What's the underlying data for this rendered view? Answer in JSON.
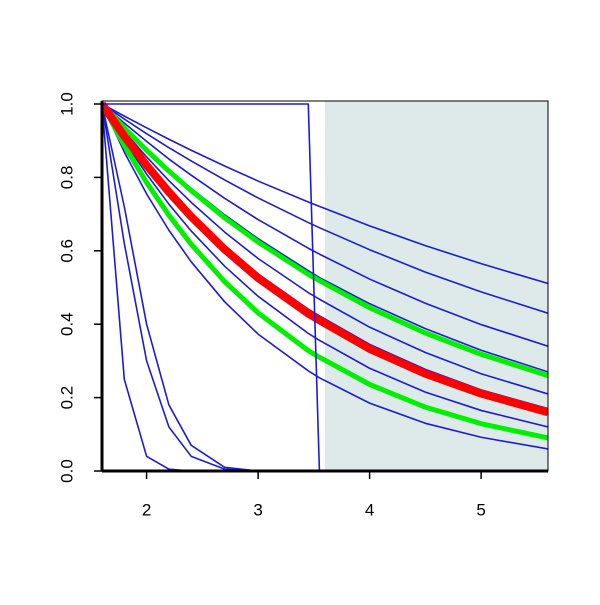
{
  "chart_data": {
    "type": "line",
    "x": [
      1.6,
      1.8,
      2.0,
      2.2,
      2.4,
      2.7,
      3.0,
      3.45,
      3.55,
      4.0,
      4.5,
      5.0,
      5.6
    ],
    "xlim": [
      1.6,
      5.6
    ],
    "ylim": [
      0,
      1
    ],
    "xticks": [
      2,
      3,
      4,
      5
    ],
    "yticks": [
      {
        "value": 0,
        "label": "0.0"
      },
      {
        "value": 0.2,
        "label": "0.2"
      },
      {
        "value": 0.4,
        "label": "0.4"
      },
      {
        "value": 0.6,
        "label": "0.6"
      },
      {
        "value": 0.8,
        "label": "0.8"
      },
      {
        "value": 1,
        "label": "1.0"
      }
    ],
    "grid": false,
    "shaded_region": {
      "x": [
        3.6,
        5.6
      ],
      "color": "#deeaea"
    },
    "series": [
      {
        "color": "#1c1cd6",
        "width": 1.6,
        "values": [
          1,
          0.967,
          0.935,
          0.904,
          0.874,
          0.831,
          0.79,
          0.733,
          0.721,
          0.668,
          0.614,
          0.565,
          0.511
        ]
      },
      {
        "color": "#1c1cd6",
        "width": 1.6,
        "values": [
          1,
          0.959,
          0.919,
          0.881,
          0.845,
          0.793,
          0.744,
          0.677,
          0.663,
          0.603,
          0.542,
          0.488,
          0.43
        ]
      },
      {
        "color": "#1c1cd6",
        "width": 1.6,
        "values": [
          1,
          0.948,
          0.898,
          0.85,
          0.806,
          0.743,
          0.685,
          0.607,
          0.591,
          0.523,
          0.457,
          0.399,
          0.34
        ]
      },
      {
        "color": "#1c1cd6",
        "width": 1.6,
        "values": [
          1,
          0.937,
          0.877,
          0.822,
          0.77,
          0.698,
          0.633,
          0.546,
          0.527,
          0.456,
          0.388,
          0.329,
          0.27
        ]
      },
      {
        "color": "#1c1cd6",
        "width": 1.6,
        "values": [
          1,
          0.925,
          0.856,
          0.791,
          0.732,
          0.651,
          0.579,
          0.486,
          0.468,
          0.392,
          0.323,
          0.265,
          0.21
        ]
      },
      {
        "color": "#1c1cd6",
        "width": 1.6,
        "values": [
          1,
          0.915,
          0.838,
          0.767,
          0.702,
          0.614,
          0.537,
          0.441,
          0.423,
          0.345,
          0.277,
          0.221,
          0.17
        ]
      },
      {
        "color": "#1c1cd6",
        "width": 1.6,
        "values": [
          1,
          0.899,
          0.809,
          0.727,
          0.654,
          0.558,
          0.476,
          0.375,
          0.356,
          0.28,
          0.215,
          0.165,
          0.12
        ]
      },
      {
        "color": "#1c1cd6",
        "width": 1.6,
        "values": [
          1,
          0.869,
          0.755,
          0.656,
          0.57,
          0.461,
          0.373,
          0.273,
          0.254,
          0.185,
          0.13,
          0.092,
          0.06
        ]
      },
      {
        "color": "#1c1cd6",
        "width": 1.6,
        "values": [
          1,
          0.25,
          0.04,
          0.005,
          0,
          0,
          0,
          0,
          0,
          0,
          0,
          0,
          0
        ]
      },
      {
        "color": "#1c1cd6",
        "width": 1.6,
        "values": [
          1,
          0.62,
          0.3,
          0.12,
          0.04,
          0.005,
          0,
          0,
          0,
          0,
          0,
          0,
          0
        ]
      },
      {
        "color": "#1c1cd6",
        "width": 1.6,
        "values": [
          1,
          0.72,
          0.4,
          0.18,
          0.07,
          0.01,
          0,
          0,
          0,
          0,
          0,
          0,
          0
        ]
      },
      {
        "color": "#00f000",
        "width": 5,
        "values": [
          1,
          0.935,
          0.874,
          0.817,
          0.764,
          0.69,
          0.624,
          0.536,
          0.519,
          0.445,
          0.376,
          0.318,
          0.26
        ]
      },
      {
        "color": "#00f000",
        "width": 5,
        "values": [
          1,
          0.887,
          0.786,
          0.697,
          0.618,
          0.516,
          0.431,
          0.328,
          0.31,
          0.236,
          0.174,
          0.129,
          0.09
        ]
      },
      {
        "color": "#ff0000",
        "width": 8,
        "values": [
          1,
          0.912,
          0.833,
          0.76,
          0.693,
          0.604,
          0.526,
          0.429,
          0.411,
          0.333,
          0.265,
          0.211,
          0.16
        ]
      },
      {
        "color": "#1c1cd6",
        "width": 1.6,
        "values": [
          1,
          1,
          1,
          1,
          1,
          1,
          1,
          1,
          0,
          0,
          0,
          0,
          0
        ]
      }
    ]
  }
}
